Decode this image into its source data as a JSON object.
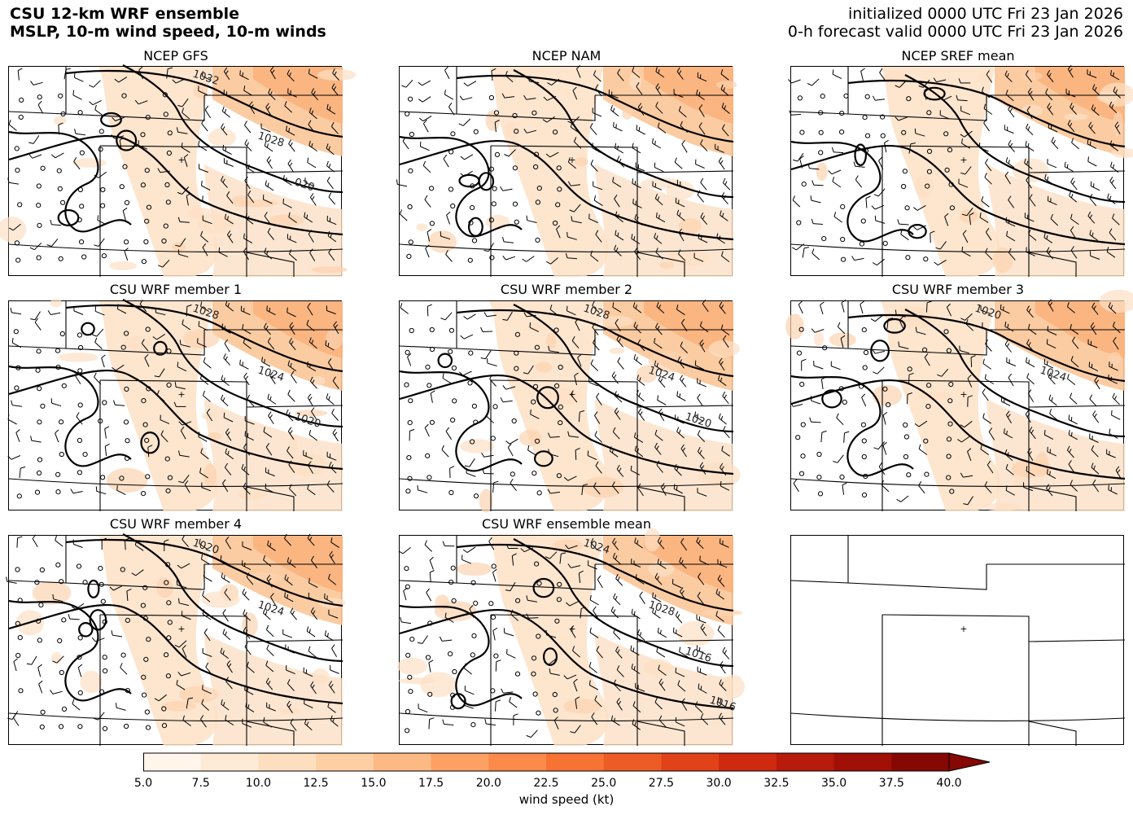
{
  "header": {
    "title_line1": "CSU 12-km WRF ensemble",
    "title_line2": "MSLP, 10-m wind speed, 10-m winds",
    "init_line": "initialized 0000 UTC Fri 23 Jan 2026",
    "valid_line": "0-h forecast valid 0000 UTC Fri 23 Jan 2026"
  },
  "panels": [
    {
      "title": "NCEP GFS",
      "contour_labels": [
        "1032",
        "1028",
        "020"
      ],
      "has_data": true
    },
    {
      "title": "NCEP NAM",
      "contour_labels": [],
      "has_data": true
    },
    {
      "title": "NCEP SREF mean",
      "contour_labels": [],
      "has_data": true
    },
    {
      "title": "CSU WRF member 1",
      "contour_labels": [
        "1028",
        "1024",
        "1020"
      ],
      "has_data": true
    },
    {
      "title": "CSU WRF member 2",
      "contour_labels": [
        "1028",
        "1024",
        "1020"
      ],
      "has_data": true
    },
    {
      "title": "CSU WRF member 3",
      "contour_labels": [
        "1020",
        "1024"
      ],
      "has_data": true
    },
    {
      "title": "CSU WRF member 4",
      "contour_labels": [
        "1020",
        "1024"
      ],
      "has_data": true
    },
    {
      "title": "CSU WRF ensemble mean",
      "contour_labels": [
        "1024",
        "1028",
        "1016",
        "1016"
      ],
      "has_data": true
    },
    {
      "title": "",
      "contour_labels": [],
      "has_data": false
    }
  ],
  "colorbar": {
    "label": "wind speed (kt)",
    "ticks": [
      "5.0",
      "7.5",
      "10.0",
      "12.5",
      "15.0",
      "17.5",
      "20.0",
      "22.5",
      "25.0",
      "27.5",
      "30.0",
      "32.5",
      "35.0",
      "37.5",
      "40.0"
    ],
    "colors": [
      "#fff5eb",
      "#feead5",
      "#fddfc0",
      "#fdcfa3",
      "#fdb983",
      "#fda064",
      "#fc8a4a",
      "#f77334",
      "#ee5c25",
      "#e14219",
      "#cf2a10",
      "#b81a0b",
      "#a11007",
      "#860803"
    ],
    "extend": "max"
  }
}
